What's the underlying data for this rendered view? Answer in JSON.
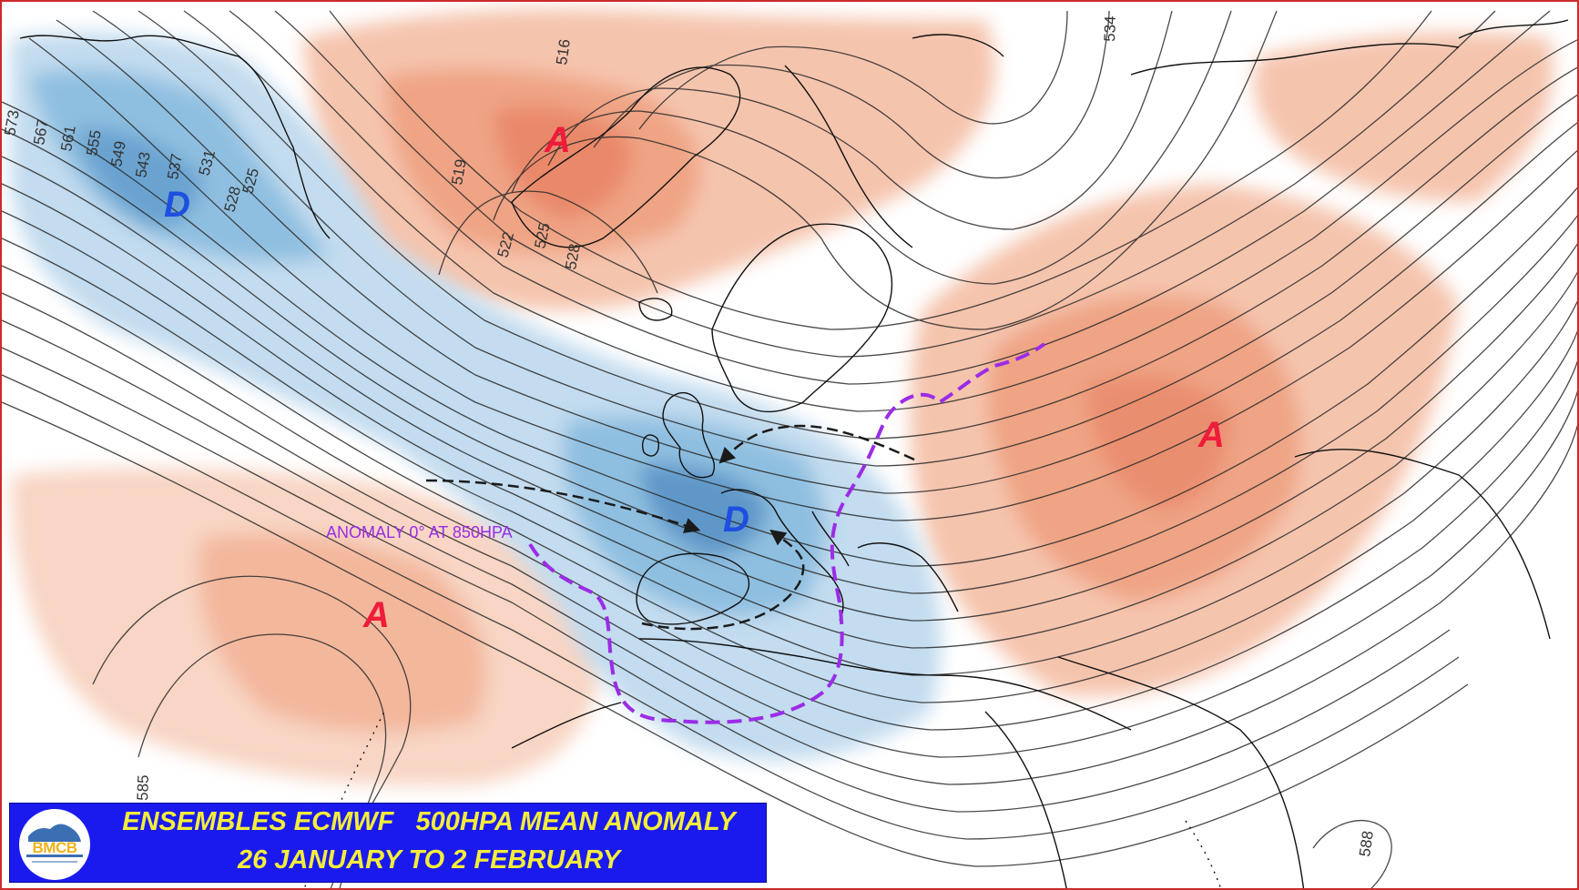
{
  "title": {
    "line1": "ENSEMBLES ECMWF   500HPA MEAN ANOMALY",
    "line2": "26 JANUARY TO 2 FEBRUARY"
  },
  "logo": {
    "text": "BMCB"
  },
  "annotations": {
    "zero_line_label": "ANOMALY 0° AT 850HPA"
  },
  "pressure_centers": [
    {
      "label": "A",
      "kind": "high",
      "place": "greenland"
    },
    {
      "label": "A",
      "kind": "high",
      "place": "russia"
    },
    {
      "label": "A",
      "kind": "high",
      "place": "azores"
    },
    {
      "label": "D",
      "kind": "low",
      "place": "alaska"
    },
    {
      "label": "D",
      "kind": "low",
      "place": "france"
    }
  ],
  "contour_labels": [
    "573",
    "567",
    "561",
    "555",
    "549",
    "543",
    "537",
    "531",
    "528",
    "525",
    "519",
    "522",
    "525",
    "528",
    "516",
    "534",
    "585",
    "588"
  ],
  "colors": {
    "high_label": "#ee1c3a",
    "low_label": "#1f4fe0",
    "zero_line": "#9b2ce6",
    "arrows": "#1a1a1a",
    "positive_anomaly": "#f0a27f",
    "negative_anomaly": "#7fb0d8",
    "title_bg": "#1a1aef",
    "title_text": "#f4ee3a",
    "frame": "#cc2b2b"
  }
}
